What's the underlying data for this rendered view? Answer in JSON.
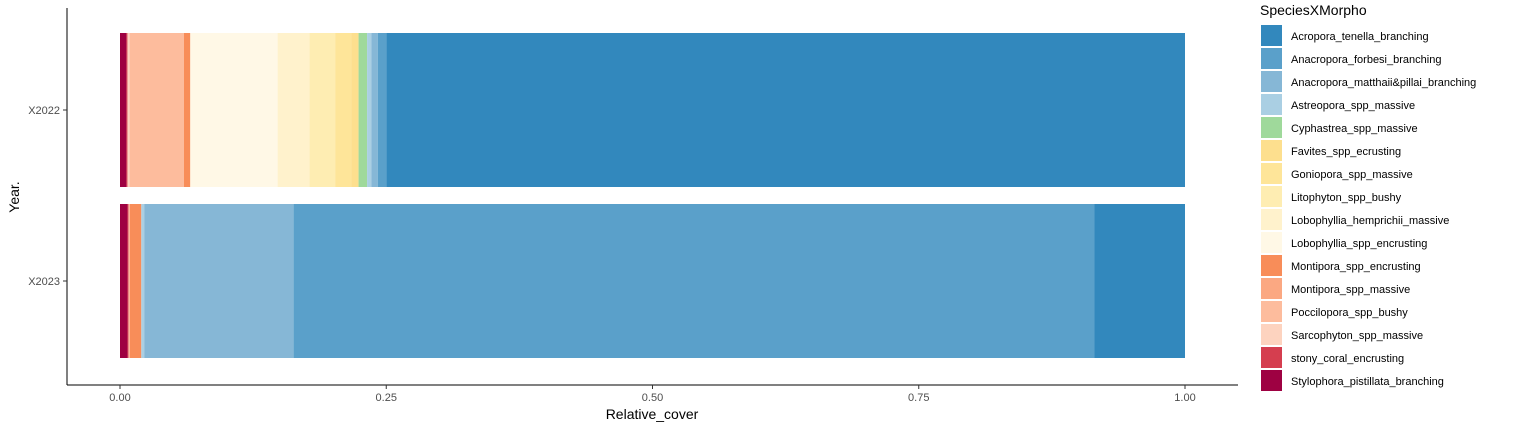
{
  "chart_data": {
    "type": "bar",
    "orientation": "horizontal",
    "stacked": true,
    "categories": [
      "X2022",
      "X2023"
    ],
    "xlabel": "Relative_cover",
    "ylabel": "Year.",
    "xlim": [
      0,
      1
    ],
    "x_ticks": [
      "0.00",
      "0.25",
      "0.50",
      "0.75",
      "1.00"
    ],
    "x_tick_values": [
      0,
      0.25,
      0.5,
      0.75,
      1.0
    ],
    "grid": false,
    "legend": {
      "title": "SpeciesXMorpho",
      "position": "right"
    },
    "stack_order": "last series at left",
    "series": [
      {
        "name": "Acropora_tenella_branching",
        "color": "#3288BD",
        "values": [
          0.75,
          0.085
        ]
      },
      {
        "name": "Anacropora_forbesi_branching",
        "color": "#5AA0CA",
        "values": [
          0.008,
          0.752
        ]
      },
      {
        "name": "Anacropora_matthaii&pillai_branching",
        "color": "#86B7D6",
        "values": [
          0.006,
          0.14
        ]
      },
      {
        "name": "Astreopora_spp_massive",
        "color": "#AACFE3",
        "values": [
          0.004,
          0.003
        ]
      },
      {
        "name": "Cyphastrea_spp_massive",
        "color": "#9FD99B",
        "values": [
          0.008,
          0.0
        ]
      },
      {
        "name": "Favites_spp_ecrusting",
        "color": "#FDDF8E",
        "values": [
          0.007,
          0.0
        ]
      },
      {
        "name": "Goniopora_spp_massive",
        "color": "#FEE599",
        "values": [
          0.015,
          0.0
        ]
      },
      {
        "name": "Litophyton_spp_bushy",
        "color": "#FEEDB2",
        "values": [
          0.024,
          0.0
        ]
      },
      {
        "name": "Lobophyllia_hemprichii_massive",
        "color": "#FFF2CC",
        "values": [
          0.03,
          0.0
        ]
      },
      {
        "name": "Lobophyllia_spp_encrusting",
        "color": "#FFF8E6",
        "values": [
          0.082,
          0.0
        ]
      },
      {
        "name": "Montipora_spp_encrusting",
        "color": "#F88D59",
        "values": [
          0.006,
          0.011
        ]
      },
      {
        "name": "Montipora_spp_massive",
        "color": "#FBA882",
        "values": [
          0.0,
          0.0
        ]
      },
      {
        "name": "Poccilopora_spp_bushy",
        "color": "#FDBC9D",
        "values": [
          0.051,
          0.0
        ]
      },
      {
        "name": "Sarcophyton_spp_massive",
        "color": "#FDD3BF",
        "values": [
          0.002,
          0.001
        ]
      },
      {
        "name": "stony_coral_encrusting",
        "color": "#D53E4F",
        "values": [
          0.001,
          0.001
        ]
      },
      {
        "name": "Stylophora_pistillata_branching",
        "color": "#9E0142",
        "values": [
          0.006,
          0.007
        ]
      }
    ]
  }
}
